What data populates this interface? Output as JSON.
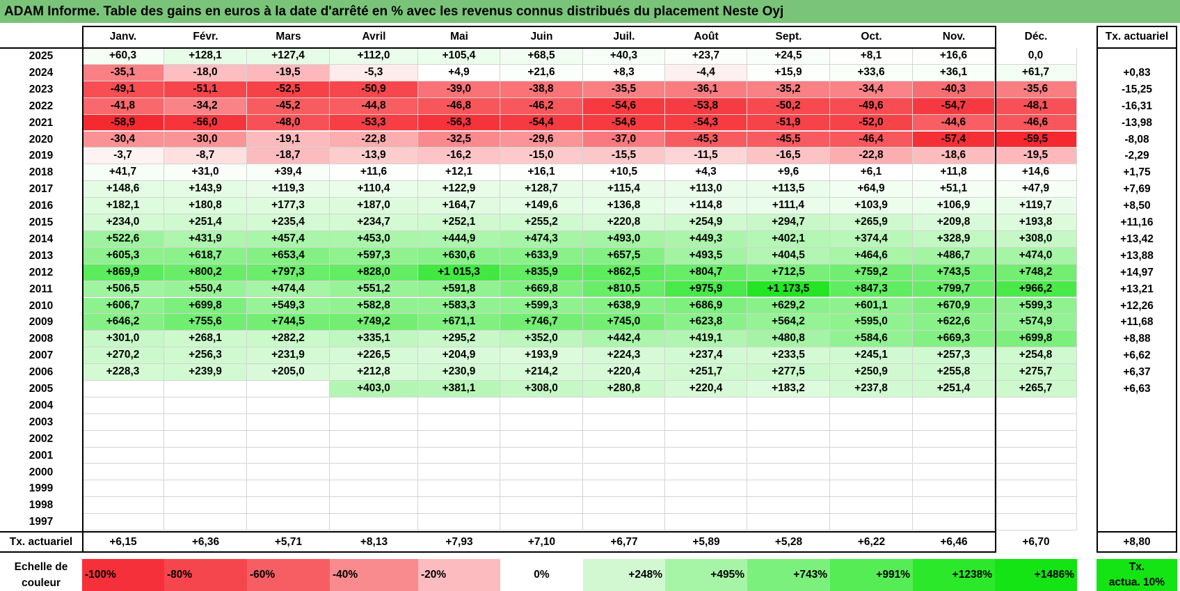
{
  "title": "ADAM Informe. Table des gains en euros à la date d'arrêté en % avec les revenus connus distribués du placement Neste Oyj",
  "months": [
    "Janv.",
    "Févr.",
    "Mars",
    "Avril",
    "Mai",
    "Juin",
    "Juil.",
    "Août",
    "Sept.",
    "Oct.",
    "Nov.",
    "Déc."
  ],
  "actuarial_header": "Tx. actuariel",
  "rows": [
    {
      "year": "2025",
      "values": [
        "+60,3",
        "+128,1",
        "+127,4",
        "+112,0",
        "+105,4",
        "+68,5",
        "+40,3",
        "+23,7",
        "+24,5",
        "+8,1",
        "+16,6",
        "0,0"
      ],
      "tx": ""
    },
    {
      "year": "2024",
      "values": [
        "-35,1",
        "-18,0",
        "-19,5",
        "-5,3",
        "+4,9",
        "+21,6",
        "+8,3",
        "-4,4",
        "+15,9",
        "+33,6",
        "+36,1",
        "+61,7"
      ],
      "tx": "+0,83"
    },
    {
      "year": "2023",
      "values": [
        "-49,1",
        "-51,1",
        "-52,5",
        "-50,9",
        "-39,0",
        "-38,8",
        "-35,5",
        "-36,1",
        "-35,2",
        "-34,4",
        "-40,3",
        "-35,6"
      ],
      "tx": "-15,25"
    },
    {
      "year": "2022",
      "values": [
        "-41,8",
        "-34,2",
        "-45,2",
        "-44,8",
        "-46,8",
        "-46,2",
        "-54,6",
        "-53,8",
        "-50,2",
        "-49,6",
        "-54,7",
        "-48,1"
      ],
      "tx": "-16,31"
    },
    {
      "year": "2021",
      "values": [
        "-58,9",
        "-56,0",
        "-48,0",
        "-53,3",
        "-56,3",
        "-54,4",
        "-54,6",
        "-54,3",
        "-51,9",
        "-52,0",
        "-44,6",
        "-46,6"
      ],
      "tx": "-13,98"
    },
    {
      "year": "2020",
      "values": [
        "-30,4",
        "-30,0",
        "-19,1",
        "-22,8",
        "-32,5",
        "-29,6",
        "-37,0",
        "-45,3",
        "-45,5",
        "-46,4",
        "-57,4",
        "-59,5"
      ],
      "tx": "-8,08"
    },
    {
      "year": "2019",
      "values": [
        "-3,7",
        "-8,7",
        "-18,7",
        "-13,9",
        "-16,2",
        "-15,0",
        "-15,5",
        "-11,5",
        "-16,5",
        "-22,8",
        "-18,6",
        "-19,5"
      ],
      "tx": "-2,29"
    },
    {
      "year": "2018",
      "values": [
        "+41,7",
        "+31,0",
        "+39,4",
        "+11,6",
        "+12,1",
        "+16,1",
        "+10,5",
        "+4,3",
        "+9,6",
        "+6,1",
        "+11,8",
        "+14,6"
      ],
      "tx": "+1,75"
    },
    {
      "year": "2017",
      "values": [
        "+148,6",
        "+143,9",
        "+119,3",
        "+110,4",
        "+122,9",
        "+128,7",
        "+115,4",
        "+113,0",
        "+113,5",
        "+64,9",
        "+51,1",
        "+47,9"
      ],
      "tx": "+7,69"
    },
    {
      "year": "2016",
      "values": [
        "+182,1",
        "+180,8",
        "+177,3",
        "+187,0",
        "+164,7",
        "+149,6",
        "+136,8",
        "+114,8",
        "+111,4",
        "+103,9",
        "+106,9",
        "+119,7"
      ],
      "tx": "+8,50"
    },
    {
      "year": "2015",
      "values": [
        "+234,0",
        "+251,4",
        "+235,4",
        "+234,7",
        "+252,1",
        "+255,2",
        "+220,8",
        "+254,9",
        "+294,7",
        "+265,9",
        "+209,8",
        "+193,8"
      ],
      "tx": "+11,16"
    },
    {
      "year": "2014",
      "values": [
        "+522,6",
        "+431,9",
        "+457,4",
        "+453,0",
        "+444,9",
        "+474,3",
        "+493,0",
        "+449,3",
        "+402,1",
        "+374,4",
        "+328,9",
        "+308,0"
      ],
      "tx": "+13,42"
    },
    {
      "year": "2013",
      "values": [
        "+605,3",
        "+618,7",
        "+653,4",
        "+597,3",
        "+630,6",
        "+633,9",
        "+657,5",
        "+493,5",
        "+404,5",
        "+464,6",
        "+486,7",
        "+474,0"
      ],
      "tx": "+13,88"
    },
    {
      "year": "2012",
      "values": [
        "+869,9",
        "+800,2",
        "+797,3",
        "+828,0",
        "+1 015,3",
        "+835,9",
        "+862,5",
        "+804,7",
        "+712,5",
        "+759,2",
        "+743,5",
        "+748,2"
      ],
      "tx": "+14,97"
    },
    {
      "year": "2011",
      "values": [
        "+506,5",
        "+550,4",
        "+474,4",
        "+551,2",
        "+591,8",
        "+669,8",
        "+810,5",
        "+975,9",
        "+1 173,5",
        "+847,3",
        "+799,7",
        "+966,2"
      ],
      "tx": "+13,21"
    },
    {
      "year": "2010",
      "values": [
        "+606,7",
        "+699,8",
        "+549,3",
        "+582,8",
        "+583,3",
        "+599,3",
        "+638,9",
        "+686,9",
        "+629,2",
        "+601,1",
        "+670,9",
        "+599,3"
      ],
      "tx": "+12,26"
    },
    {
      "year": "2009",
      "values": [
        "+646,2",
        "+755,6",
        "+744,5",
        "+749,2",
        "+671,1",
        "+746,7",
        "+745,0",
        "+623,8",
        "+564,2",
        "+595,0",
        "+622,6",
        "+574,9"
      ],
      "tx": "+11,68"
    },
    {
      "year": "2008",
      "values": [
        "+301,0",
        "+268,1",
        "+282,2",
        "+335,1",
        "+295,2",
        "+352,0",
        "+442,4",
        "+419,1",
        "+480,8",
        "+584,6",
        "+669,3",
        "+699,8"
      ],
      "tx": "+8,88"
    },
    {
      "year": "2007",
      "values": [
        "+270,2",
        "+256,3",
        "+231,9",
        "+226,5",
        "+204,9",
        "+193,9",
        "+224,3",
        "+237,4",
        "+233,5",
        "+245,1",
        "+257,3",
        "+254,8"
      ],
      "tx": "+6,62"
    },
    {
      "year": "2006",
      "values": [
        "+228,3",
        "+239,9",
        "+205,0",
        "+212,8",
        "+230,9",
        "+214,2",
        "+220,4",
        "+251,7",
        "+277,5",
        "+250,9",
        "+255,8",
        "+275,7"
      ],
      "tx": "+6,37"
    },
    {
      "year": "2005",
      "values": [
        "",
        "",
        "",
        "+403,0",
        "+381,1",
        "+308,0",
        "+280,8",
        "+220,4",
        "+183,2",
        "+237,8",
        "+251,4",
        "+265,7"
      ],
      "tx": "+6,63"
    },
    {
      "year": "2004",
      "values": [
        "",
        "",
        "",
        "",
        "",
        "",
        "",
        "",
        "",
        "",
        "",
        ""
      ],
      "tx": ""
    },
    {
      "year": "2003",
      "values": [
        "",
        "",
        "",
        "",
        "",
        "",
        "",
        "",
        "",
        "",
        "",
        ""
      ],
      "tx": ""
    },
    {
      "year": "2002",
      "values": [
        "",
        "",
        "",
        "",
        "",
        "",
        "",
        "",
        "",
        "",
        "",
        ""
      ],
      "tx": ""
    },
    {
      "year": "2001",
      "values": [
        "",
        "",
        "",
        "",
        "",
        "",
        "",
        "",
        "",
        "",
        "",
        ""
      ],
      "tx": ""
    },
    {
      "year": "2000",
      "values": [
        "",
        "",
        "",
        "",
        "",
        "",
        "",
        "",
        "",
        "",
        "",
        ""
      ],
      "tx": ""
    },
    {
      "year": "1999",
      "values": [
        "",
        "",
        "",
        "",
        "",
        "",
        "",
        "",
        "",
        "",
        "",
        ""
      ],
      "tx": ""
    },
    {
      "year": "1998",
      "values": [
        "",
        "",
        "",
        "",
        "",
        "",
        "",
        "",
        "",
        "",
        "",
        ""
      ],
      "tx": ""
    },
    {
      "year": "1997",
      "values": [
        "",
        "",
        "",
        "",
        "",
        "",
        "",
        "",
        "",
        "",
        "",
        ""
      ],
      "tx": ""
    }
  ],
  "footer": {
    "label": "Tx. actuariel",
    "values": [
      "+6,15",
      "+6,36",
      "+5,71",
      "+8,13",
      "+7,93",
      "+7,10",
      "+6,77",
      "+5,89",
      "+5,28",
      "+6,22",
      "+6,46",
      "+6,70"
    ],
    "total": "+8,80"
  },
  "scale": {
    "label_line1": "Echelle de",
    "label_line2": "couleur",
    "items": [
      {
        "text": "-100%",
        "color": "#f5303a"
      },
      {
        "text": "-80%",
        "color": "#f5464e"
      },
      {
        "text": "-60%",
        "color": "#f75e64"
      },
      {
        "text": "-40%",
        "color": "#f98a8e"
      },
      {
        "text": "-20%",
        "color": "#fcbcbf"
      },
      {
        "text": "0%",
        "color": "#ffffff"
      },
      {
        "text": "+248%",
        "color": "#d2f8d2"
      },
      {
        "text": "+495%",
        "color": "#a6f4a6"
      },
      {
        "text": "+743%",
        "color": "#7cf07c"
      },
      {
        "text": "+991%",
        "color": "#55ec55"
      },
      {
        "text": "+1238%",
        "color": "#2be82b"
      },
      {
        "text": "+1486%",
        "color": "#14e314"
      }
    ],
    "legend_line1": "Tx.",
    "legend_line2": "actua. 10%",
    "legend_color": "#14e314"
  },
  "colors": {
    "title_bg": "#7ac47a",
    "grid": "#d4d4d4",
    "border": "#000000"
  }
}
